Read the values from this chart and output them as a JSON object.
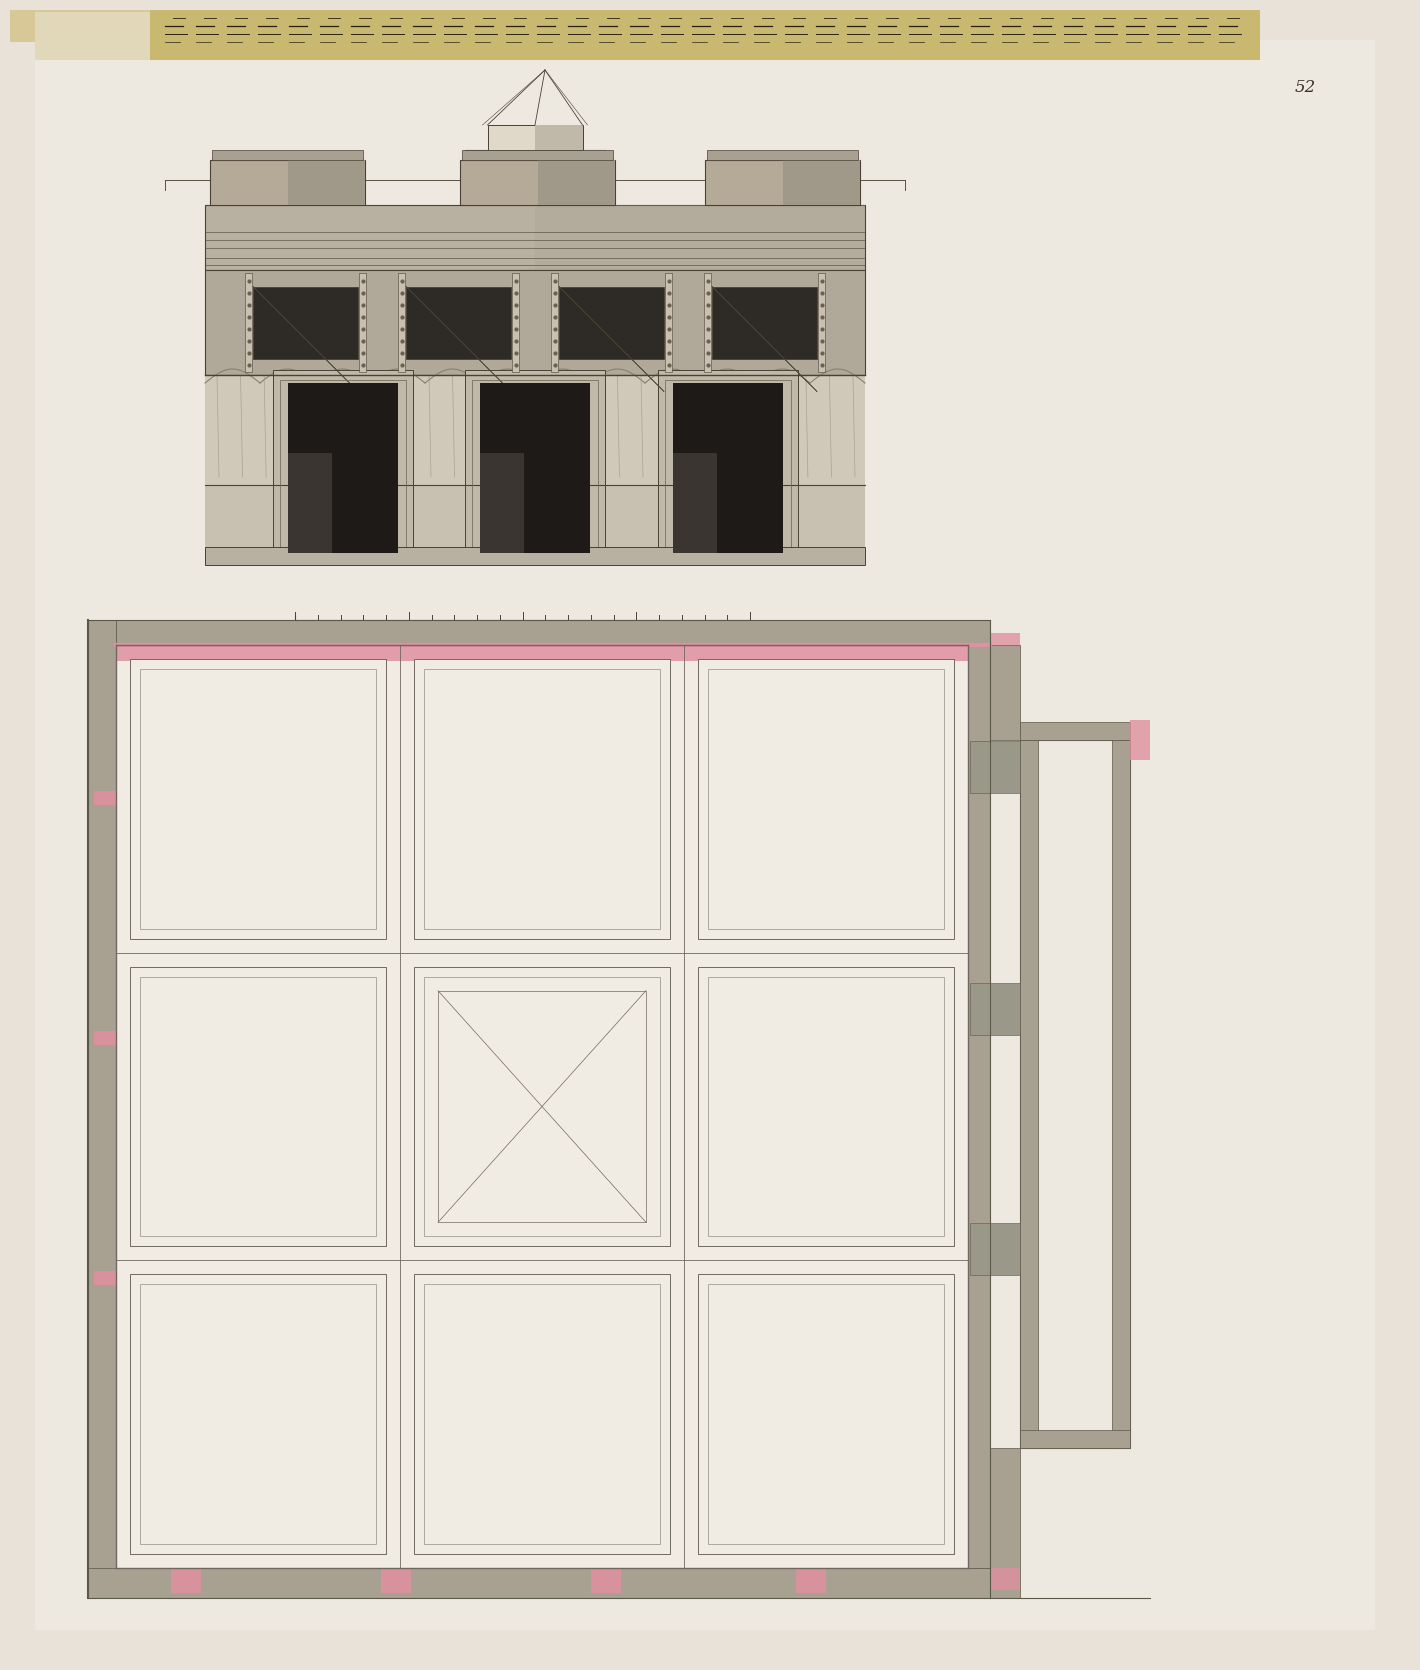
{
  "bg_color": "#e8e2d8",
  "paper_color": "#eee9e0",
  "wall_fill": "#b0a898",
  "dark_stone": "#6a6055",
  "mid_stone": "#9a9080",
  "light_stone": "#c8c0b0",
  "dark_panel": "#3a3530",
  "drapery_bg": "#d0c8b8",
  "pink": "#e8a0b0",
  "pink_fill": "#e090a0",
  "taupe_fill": "#a09888",
  "cream": "#f0ece4",
  "panel_line": "#706860",
  "thin_line": "#888070"
}
